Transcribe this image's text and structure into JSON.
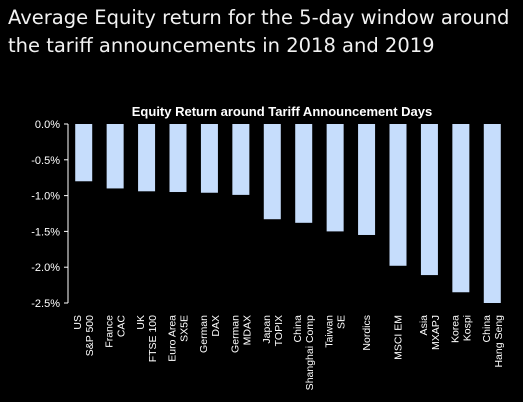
{
  "heading": {
    "line1": "Average Equity return for the 5-day window around",
    "line2": "the tariff announcements in 2018 and 2019"
  },
  "colors": {
    "bar": "#c6ddfc",
    "background": "#000000",
    "text": "#ffffff"
  },
  "chart_data": {
    "type": "bar",
    "title": "Equity Return around Tariff Announcement Days",
    "xlabel": "",
    "ylabel": "",
    "ylim": [
      -2.5,
      0
    ],
    "yticks": [
      "0.0%",
      "-0.5%",
      "-1.0%",
      "-1.5%",
      "-2.0%",
      "-2.5%"
    ],
    "ytick_values": [
      0,
      -0.5,
      -1.0,
      -1.5,
      -2.0,
      -2.5
    ],
    "grid": false,
    "categories": [
      [
        "US",
        "S&P 500"
      ],
      [
        "France",
        "CAC"
      ],
      [
        "UK",
        "FTSE 100"
      ],
      [
        "Euro Area",
        "SX5E"
      ],
      [
        "German",
        "DAX"
      ],
      [
        "German",
        "MDAX"
      ],
      [
        "Japan",
        "TOPIX"
      ],
      [
        "China",
        "Shanghai Comp"
      ],
      [
        "Taiwan",
        "SE"
      ],
      [
        "Nordics"
      ],
      [
        "MSCI EM"
      ],
      [
        "Asia",
        "MXAPJ"
      ],
      [
        "Korea",
        "Kospi"
      ],
      [
        "China",
        "Hang Seng"
      ]
    ],
    "values": [
      -0.8,
      -0.9,
      -0.94,
      -0.95,
      -0.96,
      -0.99,
      -1.33,
      -1.38,
      -1.5,
      -1.55,
      -1.98,
      -2.11,
      -2.35,
      -2.5
    ]
  }
}
